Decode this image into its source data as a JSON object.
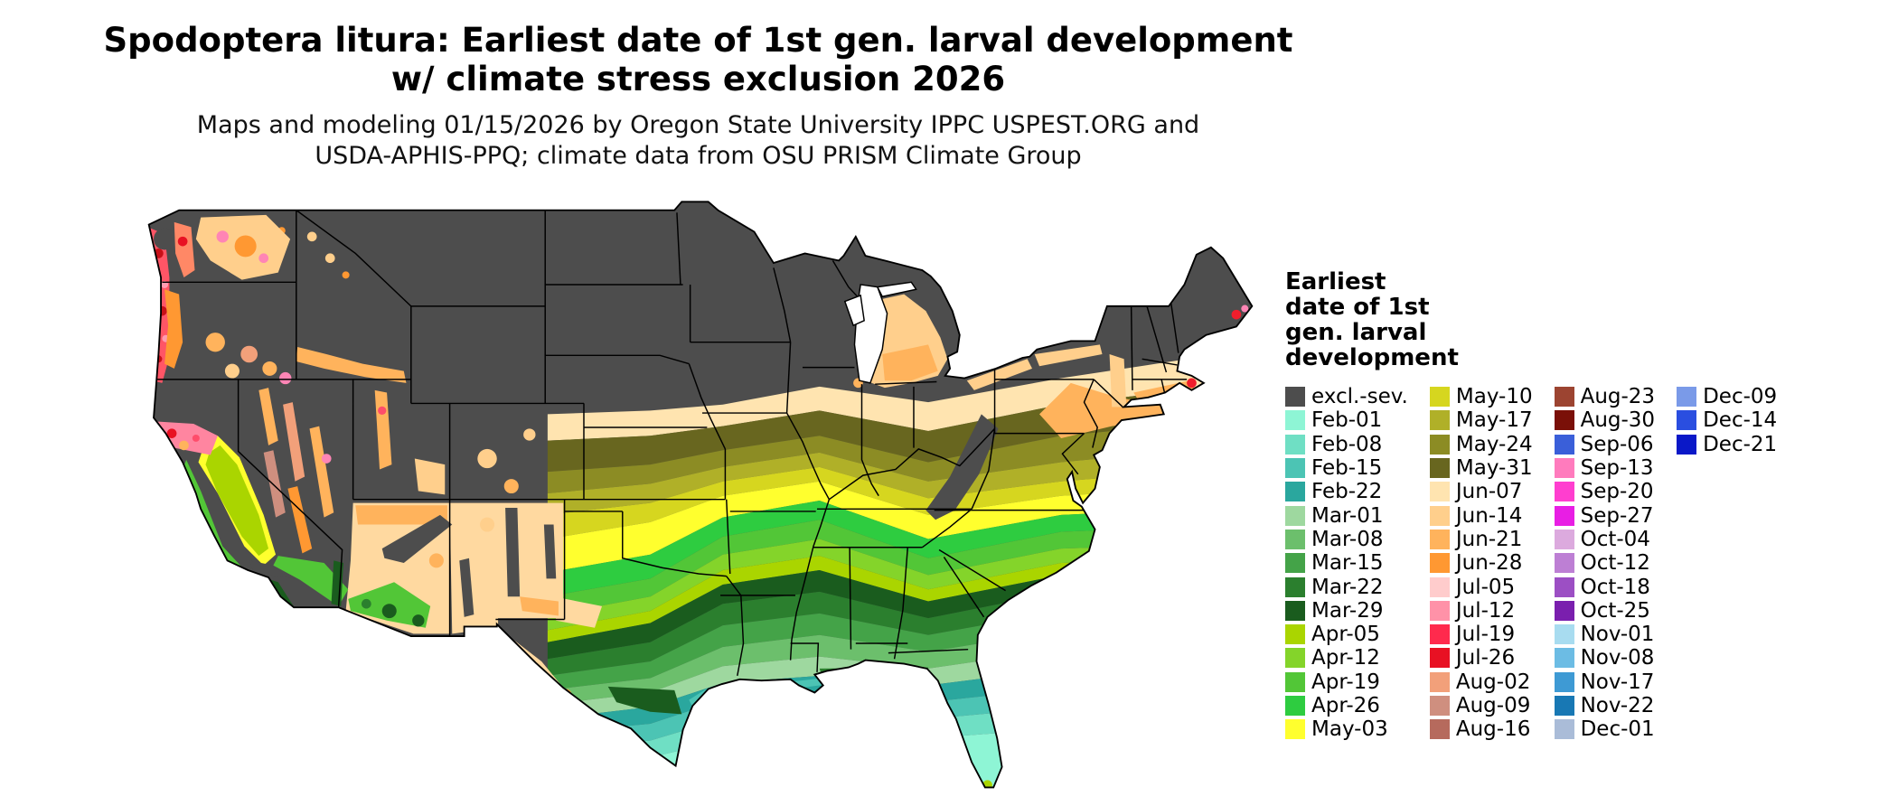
{
  "title": {
    "line1": "Spodoptera litura: Earliest date of 1st gen. larval development",
    "line2": "w/ climate stress exclusion 2026"
  },
  "subtitle": {
    "line1": "Maps and modeling 01/15/2026 by Oregon State University IPPC USPEST.ORG and",
    "line2": "USDA-APHIS-PPQ; climate data from OSU PRISM Climate Group"
  },
  "legend": {
    "title_lines": [
      "Earliest",
      "date of 1st",
      "gen. larval",
      "development"
    ],
    "columns": [
      [
        {
          "label": "excl.-sev.",
          "color": "#4d4d4d"
        },
        {
          "label": "Feb-01",
          "color": "#8ef5d5"
        },
        {
          "label": "Feb-08",
          "color": "#6fdfc4"
        },
        {
          "label": "Feb-15",
          "color": "#4cc4b4"
        },
        {
          "label": "Feb-22",
          "color": "#2aa79e"
        },
        {
          "label": "Mar-01",
          "color": "#9ed89f"
        },
        {
          "label": "Mar-08",
          "color": "#6cbf6c"
        },
        {
          "label": "Mar-15",
          "color": "#44a348"
        },
        {
          "label": "Mar-22",
          "color": "#2b7f2e"
        },
        {
          "label": "Mar-29",
          "color": "#1a5c1e"
        },
        {
          "label": "Apr-05",
          "color": "#aad500"
        },
        {
          "label": "Apr-12",
          "color": "#84d42a"
        },
        {
          "label": "Apr-19",
          "color": "#52c637"
        },
        {
          "label": "Apr-26",
          "color": "#2ecc40"
        },
        {
          "label": "May-03",
          "color": "#ffff2e"
        }
      ],
      [
        {
          "label": "May-10",
          "color": "#d6d61f"
        },
        {
          "label": "May-17",
          "color": "#b0b028"
        },
        {
          "label": "May-24",
          "color": "#8c8c24"
        },
        {
          "label": "May-31",
          "color": "#68661f"
        },
        {
          "label": "Jun-07",
          "color": "#ffe4b0"
        },
        {
          "label": "Jun-14",
          "color": "#ffcf8c"
        },
        {
          "label": "Jun-21",
          "color": "#ffb35c"
        },
        {
          "label": "Jun-28",
          "color": "#ff9832"
        },
        {
          "label": "Jul-05",
          "color": "#ffcccc"
        },
        {
          "label": "Jul-12",
          "color": "#ff92a8"
        },
        {
          "label": "Jul-19",
          "color": "#ff2a4d"
        },
        {
          "label": "Jul-26",
          "color": "#e81123"
        },
        {
          "label": "Aug-02",
          "color": "#f2a07a"
        },
        {
          "label": "Aug-09",
          "color": "#cf8f7f"
        },
        {
          "label": "Aug-16",
          "color": "#b66a5d"
        }
      ],
      [
        {
          "label": "Aug-23",
          "color": "#9c4431"
        },
        {
          "label": "Aug-30",
          "color": "#7a1008"
        },
        {
          "label": "Sep-06",
          "color": "#3a5fd9"
        },
        {
          "label": "Sep-13",
          "color": "#ff7bbd"
        },
        {
          "label": "Sep-20",
          "color": "#ff3ecf"
        },
        {
          "label": "Sep-27",
          "color": "#e81ee4"
        },
        {
          "label": "Oct-04",
          "color": "#dcaade"
        },
        {
          "label": "Oct-12",
          "color": "#bd7fd4"
        },
        {
          "label": "Oct-18",
          "color": "#9c4fc4"
        },
        {
          "label": "Oct-25",
          "color": "#7a1fae"
        },
        {
          "label": "Nov-01",
          "color": "#a8dcf0"
        },
        {
          "label": "Nov-08",
          "color": "#6cbce4"
        },
        {
          "label": "Nov-17",
          "color": "#3e9ad4"
        },
        {
          "label": "Nov-22",
          "color": "#1878b4"
        },
        {
          "label": "Dec-01",
          "color": "#aabcd8"
        }
      ],
      [
        {
          "label": "Dec-09",
          "color": "#7a9ae8"
        },
        {
          "label": "Dec-14",
          "color": "#2a4ee0"
        },
        {
          "label": "Dec-21",
          "color": "#0a18c8"
        }
      ]
    ]
  }
}
